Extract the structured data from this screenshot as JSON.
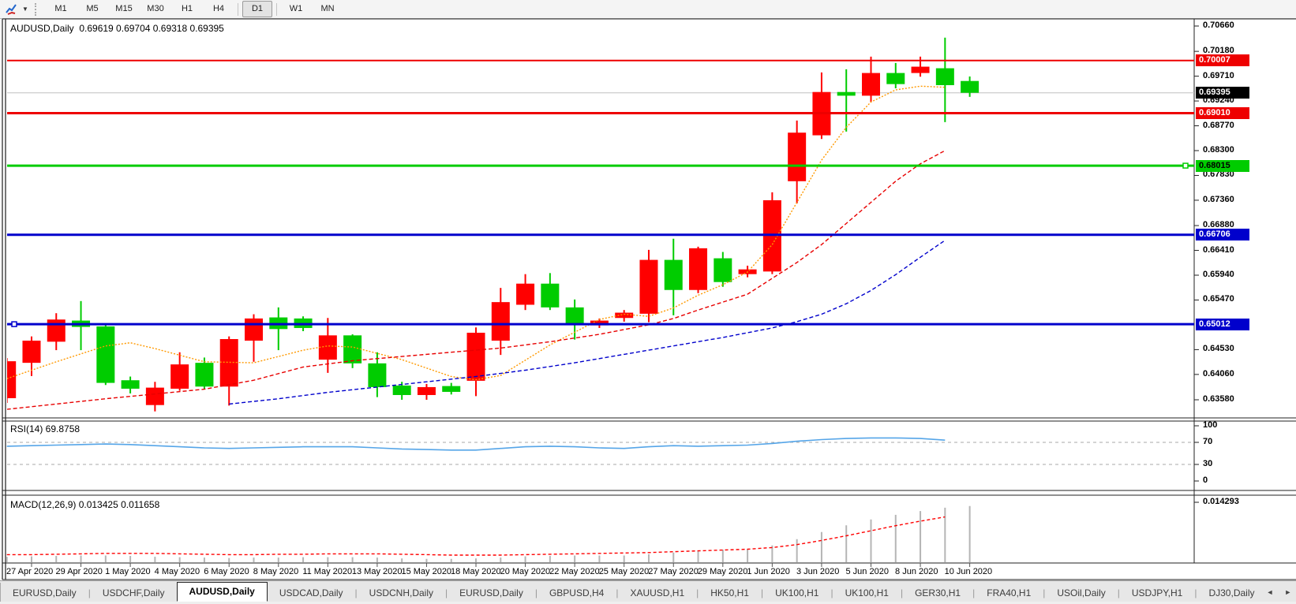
{
  "toolbar": {
    "indicators_icon": "chart-cursor-icon",
    "timeframes": [
      {
        "label": "M1",
        "active": false
      },
      {
        "label": "M5",
        "active": false
      },
      {
        "label": "M15",
        "active": false
      },
      {
        "label": "M30",
        "active": false
      },
      {
        "label": "H1",
        "active": false
      },
      {
        "label": "H4",
        "active": false
      },
      {
        "label": "D1",
        "active": true
      },
      {
        "label": "W1",
        "active": false
      },
      {
        "label": "MN",
        "active": false
      }
    ]
  },
  "chart": {
    "main_label": "AUDUSD,Daily  0.69619 0.69704 0.69318 0.69395",
    "rsi_label": "RSI(14) 69.8758",
    "macd_label": "MACD(12,26,9) 0.013425 0.011658"
  },
  "chart_data": {
    "type": "candlestick",
    "symbol": "AUDUSD",
    "timeframe": "Daily",
    "current_bar": {
      "open": 0.69619,
      "high": 0.69704,
      "low": 0.69318,
      "close": 0.69395
    },
    "ylim": [
      0.6324,
      0.7078
    ],
    "y_ticks": [
      "0.70660",
      "0.70180",
      "0.69710",
      "0.69240",
      "0.68770",
      "0.68300",
      "0.67830",
      "0.67360",
      "0.66880",
      "0.66410",
      "0.65940",
      "0.65470",
      "0.64530",
      "0.64060",
      "0.63580"
    ],
    "x_labels": [
      "27 Apr 2020",
      "29 Apr 2020",
      "1 May 2020",
      "4 May 2020",
      "6 May 2020",
      "8 May 2020",
      "11 May 2020",
      "13 May 2020",
      "15 May 2020",
      "18 May 2020",
      "20 May 2020",
      "22 May 2020",
      "25 May 2020",
      "27 May 2020",
      "29 May 2020",
      "1 Jun 2020",
      "3 Jun 2020",
      "5 Jun 2020",
      "8 Jun 2020",
      "10 Jun 2020"
    ],
    "colors": {
      "bull_body": "#ff0000",
      "bear_body": "#00cc00",
      "fast_ma": "#ff9900",
      "mid_ma": "#e80000",
      "slow_ma": "#0000cc",
      "rsi_line": "#55a5e8",
      "macd_hist": "#b5b5b5",
      "macd_signal": "#ff0000",
      "current_price_line": "#c0c0c0"
    },
    "candle_fields": [
      "date",
      "color",
      "high",
      "low",
      "body_top",
      "body_bottom"
    ],
    "candles": [
      [
        "26 Apr",
        "red",
        0.6437,
        0.6352,
        0.6431,
        0.6361
      ],
      [
        "27 Apr",
        "red",
        0.6478,
        0.6403,
        0.647,
        0.6428
      ],
      [
        "28 Apr",
        "red",
        0.6522,
        0.6452,
        0.651,
        0.6468
      ],
      [
        "29 Apr",
        "green",
        0.6545,
        0.6452,
        0.6508,
        0.6496
      ],
      [
        "30 Apr",
        "green",
        0.6502,
        0.6386,
        0.6497,
        0.639
      ],
      [
        "1 May",
        "green",
        0.6402,
        0.637,
        0.6395,
        0.6379
      ],
      [
        "3 May",
        "red",
        0.6392,
        0.6336,
        0.6381,
        0.6348
      ],
      [
        "4 May",
        "red",
        0.6448,
        0.6375,
        0.6425,
        0.6379
      ],
      [
        "5 May",
        "green",
        0.6438,
        0.6378,
        0.6428,
        0.6383
      ],
      [
        "6 May",
        "red",
        0.6478,
        0.6347,
        0.6473,
        0.6383
      ],
      [
        "7 May",
        "red",
        0.652,
        0.643,
        0.6512,
        0.647
      ],
      [
        "8 May",
        "green",
        0.6533,
        0.6452,
        0.6514,
        0.6492
      ],
      [
        "10 May",
        "green",
        0.6516,
        0.6488,
        0.6512,
        0.6494
      ],
      [
        "11 May",
        "red",
        0.6513,
        0.6409,
        0.648,
        0.6434
      ],
      [
        "12 May",
        "green",
        0.6482,
        0.6418,
        0.648,
        0.6427
      ],
      [
        "13 May",
        "green",
        0.6448,
        0.6363,
        0.6427,
        0.6382
      ],
      [
        "14 May",
        "green",
        0.6392,
        0.6358,
        0.6385,
        0.6367
      ],
      [
        "15 May",
        "red",
        0.6388,
        0.6358,
        0.6382,
        0.6367
      ],
      [
        "17 May",
        "green",
        0.639,
        0.6368,
        0.6384,
        0.6373
      ],
      [
        "18 May",
        "red",
        0.6495,
        0.6365,
        0.6485,
        0.6394
      ],
      [
        "19 May",
        "red",
        0.657,
        0.6443,
        0.6543,
        0.647
      ],
      [
        "20 May",
        "red",
        0.6596,
        0.6528,
        0.6578,
        0.6538
      ],
      [
        "21 May",
        "green",
        0.6598,
        0.6528,
        0.6578,
        0.6533
      ],
      [
        "22 May",
        "green",
        0.6548,
        0.6472,
        0.6533,
        0.65
      ],
      [
        "24 May",
        "red",
        0.6512,
        0.6494,
        0.6508,
        0.6499
      ],
      [
        "25 May",
        "red",
        0.6528,
        0.6506,
        0.6523,
        0.6513
      ],
      [
        "26 May",
        "red",
        0.6642,
        0.6505,
        0.6623,
        0.6521
      ],
      [
        "27 May",
        "green",
        0.6663,
        0.6518,
        0.6623,
        0.6566
      ],
      [
        "28 May",
        "red",
        0.6648,
        0.656,
        0.6645,
        0.6566
      ],
      [
        "29 May",
        "green",
        0.6638,
        0.6572,
        0.6626,
        0.6581
      ],
      [
        "31 May",
        "red",
        0.6612,
        0.659,
        0.6605,
        0.6596
      ],
      [
        "1 Jun",
        "red",
        0.6751,
        0.6596,
        0.6736,
        0.6601
      ],
      [
        "2 Jun",
        "red",
        0.6887,
        0.673,
        0.6864,
        0.6772
      ],
      [
        "3 Jun",
        "red",
        0.6978,
        0.6852,
        0.6941,
        0.6859
      ],
      [
        "4 Jun",
        "green",
        0.6984,
        0.6866,
        0.6941,
        0.6934
      ],
      [
        "5 Jun",
        "red",
        0.7008,
        0.6922,
        0.6977,
        0.6934
      ],
      [
        "7 Jun",
        "green",
        0.6996,
        0.6948,
        0.6977,
        0.6956
      ],
      [
        "8 Jun",
        "red",
        0.7008,
        0.697,
        0.6989,
        0.6977
      ],
      [
        "9 Jun",
        "green",
        0.7044,
        0.6884,
        0.6986,
        0.6954
      ],
      [
        "10 Jun",
        "green",
        0.69704,
        0.69318,
        0.69619,
        0.69395
      ]
    ],
    "hlines": [
      {
        "price": 0.70007,
        "label": "0.70007",
        "color": "#ee0000",
        "text_color": "#ffffff",
        "width": 2
      },
      {
        "price": 0.69395,
        "label": "0.69395",
        "color": "#000000",
        "text_color": "#ffffff",
        "width": 1,
        "line_color": "#c0c0c0"
      },
      {
        "price": 0.6901,
        "label": "0.69010",
        "color": "#ee0000",
        "text_color": "#ffffff",
        "width": 3
      },
      {
        "price": 0.68015,
        "label": "0.68015",
        "color": "#00cc00",
        "text_color": "#000000",
        "width": 3,
        "handle": "right"
      },
      {
        "price": 0.66706,
        "label": "0.66706",
        "color": "#0000cc",
        "text_color": "#ffffff",
        "width": 3
      },
      {
        "price": 0.65012,
        "label": "0.65012",
        "color": "#0000cc",
        "text_color": "#ffffff",
        "width": 3,
        "handle": "left"
      }
    ],
    "ma_lines": [
      {
        "name": "fast-ma",
        "color": "#ff9900",
        "dash": "2,2",
        "points": [
          [
            0,
            0.6398
          ],
          [
            2,
            0.643
          ],
          [
            4,
            0.646
          ],
          [
            5,
            0.6466
          ],
          [
            6,
            0.6455
          ],
          [
            8,
            0.643
          ],
          [
            10,
            0.6428
          ],
          [
            12,
            0.6452
          ],
          [
            13,
            0.646
          ],
          [
            14,
            0.6458
          ],
          [
            16,
            0.6434
          ],
          [
            18,
            0.6402
          ],
          [
            19,
            0.6396
          ],
          [
            20,
            0.6404
          ],
          [
            22,
            0.6462
          ],
          [
            24,
            0.651
          ],
          [
            25,
            0.652
          ],
          [
            26,
            0.6516
          ],
          [
            27,
            0.6532
          ],
          [
            28,
            0.6556
          ],
          [
            29,
            0.6576
          ],
          [
            30,
            0.66
          ],
          [
            31,
            0.6652
          ],
          [
            32,
            0.6732
          ],
          [
            33,
            0.6812
          ],
          [
            34,
            0.6874
          ],
          [
            35,
            0.6922
          ],
          [
            36,
            0.6945
          ],
          [
            37,
            0.6952
          ],
          [
            38,
            0.695
          ]
        ]
      },
      {
        "name": "mid-ma",
        "color": "#e80000",
        "dash": "5,3",
        "points": [
          [
            0,
            0.634
          ],
          [
            4,
            0.636
          ],
          [
            8,
            0.6378
          ],
          [
            10,
            0.6395
          ],
          [
            12,
            0.642
          ],
          [
            14,
            0.6432
          ],
          [
            16,
            0.644
          ],
          [
            18,
            0.6448
          ],
          [
            20,
            0.6456
          ],
          [
            22,
            0.6468
          ],
          [
            24,
            0.6482
          ],
          [
            26,
            0.65
          ],
          [
            27,
            0.6512
          ],
          [
            28,
            0.6528
          ],
          [
            30,
            0.6558
          ],
          [
            31,
            0.6588
          ],
          [
            32,
            0.6618
          ],
          [
            33,
            0.6652
          ],
          [
            34,
            0.6692
          ],
          [
            35,
            0.6732
          ],
          [
            36,
            0.6772
          ],
          [
            37,
            0.6805
          ],
          [
            38,
            0.683
          ]
        ]
      },
      {
        "name": "slow-ma",
        "color": "#0000cc",
        "dash": "5,3",
        "points": [
          [
            9,
            0.635
          ],
          [
            11,
            0.636
          ],
          [
            13,
            0.6372
          ],
          [
            15,
            0.6382
          ],
          [
            17,
            0.6392
          ],
          [
            19,
            0.6402
          ],
          [
            21,
            0.6414
          ],
          [
            23,
            0.6428
          ],
          [
            25,
            0.6444
          ],
          [
            27,
            0.646
          ],
          [
            29,
            0.6476
          ],
          [
            31,
            0.6494
          ],
          [
            32,
            0.6506
          ],
          [
            33,
            0.652
          ],
          [
            34,
            0.654
          ],
          [
            35,
            0.6565
          ],
          [
            36,
            0.6595
          ],
          [
            37,
            0.6628
          ],
          [
            38,
            0.666
          ]
        ]
      }
    ],
    "rsi": {
      "label": "RSI(14) 69.8758",
      "value": 69.8758,
      "axis_ticks": [
        100,
        70,
        30,
        0
      ],
      "levels": [
        70,
        30
      ],
      "series": [
        63,
        64,
        65,
        66,
        67,
        66,
        64,
        62,
        60,
        59,
        60,
        61,
        62,
        62,
        62,
        60,
        58,
        57,
        56,
        56,
        59,
        62,
        63,
        62,
        60,
        59,
        62,
        64,
        63,
        64,
        65,
        68,
        72,
        75,
        77,
        78,
        78,
        77,
        74,
        70
      ]
    },
    "macd": {
      "label": "MACD(12,26,9) 0.013425 0.011658",
      "macd_value": 0.013425,
      "signal_value": 0.011658,
      "axis_max": 0.014293,
      "axis_tick_label": "0.014293",
      "histogram": [
        0.0013,
        0.0014,
        0.0015,
        0.0016,
        0.0016,
        0.0015,
        0.0013,
        0.0012,
        0.0011,
        0.001,
        0.0011,
        0.0011,
        0.0012,
        0.0012,
        0.0012,
        0.0011,
        0.0009,
        0.0008,
        0.0008,
        0.0009,
        0.0011,
        0.0014,
        0.0015,
        0.0016,
        0.0016,
        0.0016,
        0.0019,
        0.0023,
        0.0027,
        0.003,
        0.0032,
        0.004,
        0.0055,
        0.0072,
        0.0088,
        0.0102,
        0.0113,
        0.0122,
        0.013,
        0.0134
      ],
      "signal_series": [
        0.0018,
        0.0018,
        0.0019,
        0.002,
        0.0021,
        0.0021,
        0.0021,
        0.002,
        0.0019,
        0.0018,
        0.0018,
        0.0019,
        0.0019,
        0.002,
        0.002,
        0.002,
        0.0019,
        0.0018,
        0.0017,
        0.0017,
        0.0017,
        0.0018,
        0.0019,
        0.002,
        0.0021,
        0.0022,
        0.0023,
        0.0025,
        0.0027,
        0.0029,
        0.0031,
        0.0035,
        0.0042,
        0.0052,
        0.0063,
        0.0075,
        0.0087,
        0.0098,
        0.0108,
        0.0117
      ]
    }
  },
  "tabs": {
    "items": [
      {
        "label": "EURUSD,Daily",
        "active": false
      },
      {
        "label": "USDCHF,Daily",
        "active": false
      },
      {
        "label": "AUDUSD,Daily",
        "active": true
      },
      {
        "label": "USDCAD,Daily",
        "active": false
      },
      {
        "label": "USDCNH,Daily",
        "active": false
      },
      {
        "label": "EURUSD,Daily",
        "active": false
      },
      {
        "label": "GBPUSD,H4",
        "active": false
      },
      {
        "label": "XAUUSD,H1",
        "active": false
      },
      {
        "label": "HK50,H1",
        "active": false
      },
      {
        "label": "UK100,H1",
        "active": false
      },
      {
        "label": "UK100,H1",
        "active": false
      },
      {
        "label": "GER30,H1",
        "active": false
      },
      {
        "label": "FRA40,H1",
        "active": false
      },
      {
        "label": "USOil,Daily",
        "active": false
      },
      {
        "label": "USDJPY,H1",
        "active": false
      },
      {
        "label": "DJ30,Daily",
        "active": false
      }
    ]
  }
}
